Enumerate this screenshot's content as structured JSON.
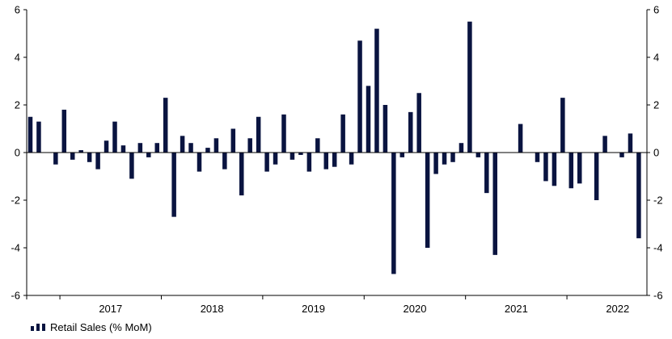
{
  "chart_data": {
    "type": "bar",
    "title": "",
    "xlabel": "",
    "ylabel": "",
    "ylim": [
      -6,
      6
    ],
    "yticks": [
      -6,
      -4,
      -2,
      0,
      2,
      4,
      6
    ],
    "ytick_labels": [
      "-6",
      "-4",
      "-2",
      "0",
      "2",
      "4",
      "6"
    ],
    "right_axis": true,
    "grid": false,
    "legend_position": "bottom-left",
    "bar_color": "#0a1440",
    "start_month": "2016-09",
    "year_labels": [
      "2017",
      "2018",
      "2019",
      "2020",
      "2021",
      "2022"
    ],
    "series": [
      {
        "name": "Retail Sales (% MoM)",
        "values": [
          1.5,
          1.3,
          0.0,
          -0.5,
          1.8,
          -0.3,
          0.1,
          -0.4,
          -0.7,
          0.5,
          1.3,
          0.3,
          -1.1,
          0.4,
          -0.2,
          0.4,
          2.3,
          -2.7,
          0.7,
          0.4,
          -0.8,
          0.2,
          0.6,
          -0.7,
          1.0,
          -1.8,
          0.6,
          1.5,
          -0.8,
          -0.5,
          1.6,
          -0.3,
          -0.1,
          -0.8,
          0.6,
          -0.7,
          -0.6,
          1.6,
          -0.5,
          4.7,
          2.8,
          5.2,
          2.0,
          -5.1,
          -0.2,
          1.7,
          2.5,
          -4.0,
          -0.9,
          -0.5,
          -0.4,
          0.4,
          5.5,
          -0.2,
          -1.7,
          -4.3,
          0.0,
          0.0,
          1.2,
          0.0,
          -0.4,
          -1.2,
          -1.4,
          2.3,
          -1.5,
          -1.3,
          0.0,
          -2.0,
          0.7,
          0.0,
          -0.2,
          0.8,
          -3.6
        ]
      }
    ]
  }
}
